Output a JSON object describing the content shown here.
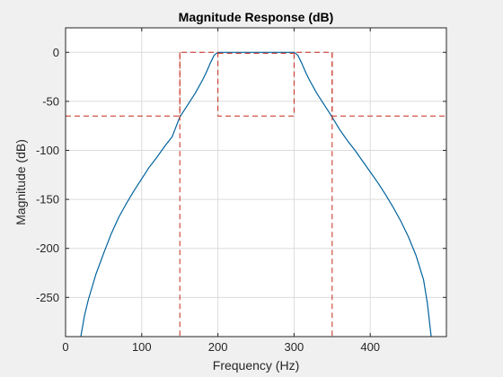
{
  "chart_data": {
    "type": "line",
    "title": "Magnitude Response (dB)",
    "xlabel": "Frequency (Hz)",
    "ylabel": "Magnitude (dB)",
    "xlim": [
      0,
      500
    ],
    "ylim": [
      -290,
      25
    ],
    "xticks": [
      0,
      100,
      200,
      300,
      400
    ],
    "yticks": [
      0,
      -50,
      -100,
      -150,
      -200,
      -250
    ],
    "grid": true,
    "colors": {
      "response": "#00639e",
      "mask": "#c42b1c",
      "axes_bg": "#ffffff",
      "figure_bg": "#f0f0f0",
      "grid": "#dcdcdc"
    },
    "series": [
      {
        "style": "solid",
        "x": [
          20,
          25,
          30,
          40,
          50,
          60,
          70,
          80,
          90,
          100,
          110,
          120,
          130,
          140,
          150,
          160,
          170,
          180,
          185,
          190,
          195,
          200,
          210,
          220,
          240,
          260,
          280,
          290,
          300,
          305,
          310,
          315,
          320,
          330,
          340,
          350,
          360,
          370,
          380,
          390,
          400,
          410,
          420,
          430,
          440,
          450,
          460,
          470,
          475,
          480
        ],
        "y": [
          -290,
          -268,
          -252,
          -226,
          -205,
          -185,
          -168,
          -154,
          -141,
          -129,
          -117,
          -107,
          -96,
          -86,
          -66,
          -54,
          -42,
          -28,
          -20,
          -11,
          -3,
          0,
          0,
          0,
          0,
          0,
          0,
          0,
          0,
          -3,
          -11,
          -20,
          -28,
          -42,
          -54,
          -66,
          -79,
          -90,
          -100,
          -111,
          -122,
          -133,
          -145,
          -158,
          -172,
          -188,
          -207,
          -232,
          -256,
          -290
        ]
      },
      {
        "style": "dashed",
        "x": [
          0,
          150,
          150,
          200,
          200,
          300,
          300,
          350,
          350,
          500
        ],
        "y": [
          -65,
          -65,
          0,
          0,
          -65,
          -65,
          0,
          0,
          -65,
          -65
        ]
      },
      {
        "style": "dashed",
        "x": [
          150,
          150
        ],
        "y": [
          0,
          -290
        ]
      },
      {
        "style": "dashed",
        "x": [
          350,
          350
        ],
        "y": [
          0,
          -290
        ]
      },
      {
        "style": "dashed",
        "x": [
          200,
          300
        ],
        "y": [
          -1,
          -1
        ]
      }
    ]
  }
}
